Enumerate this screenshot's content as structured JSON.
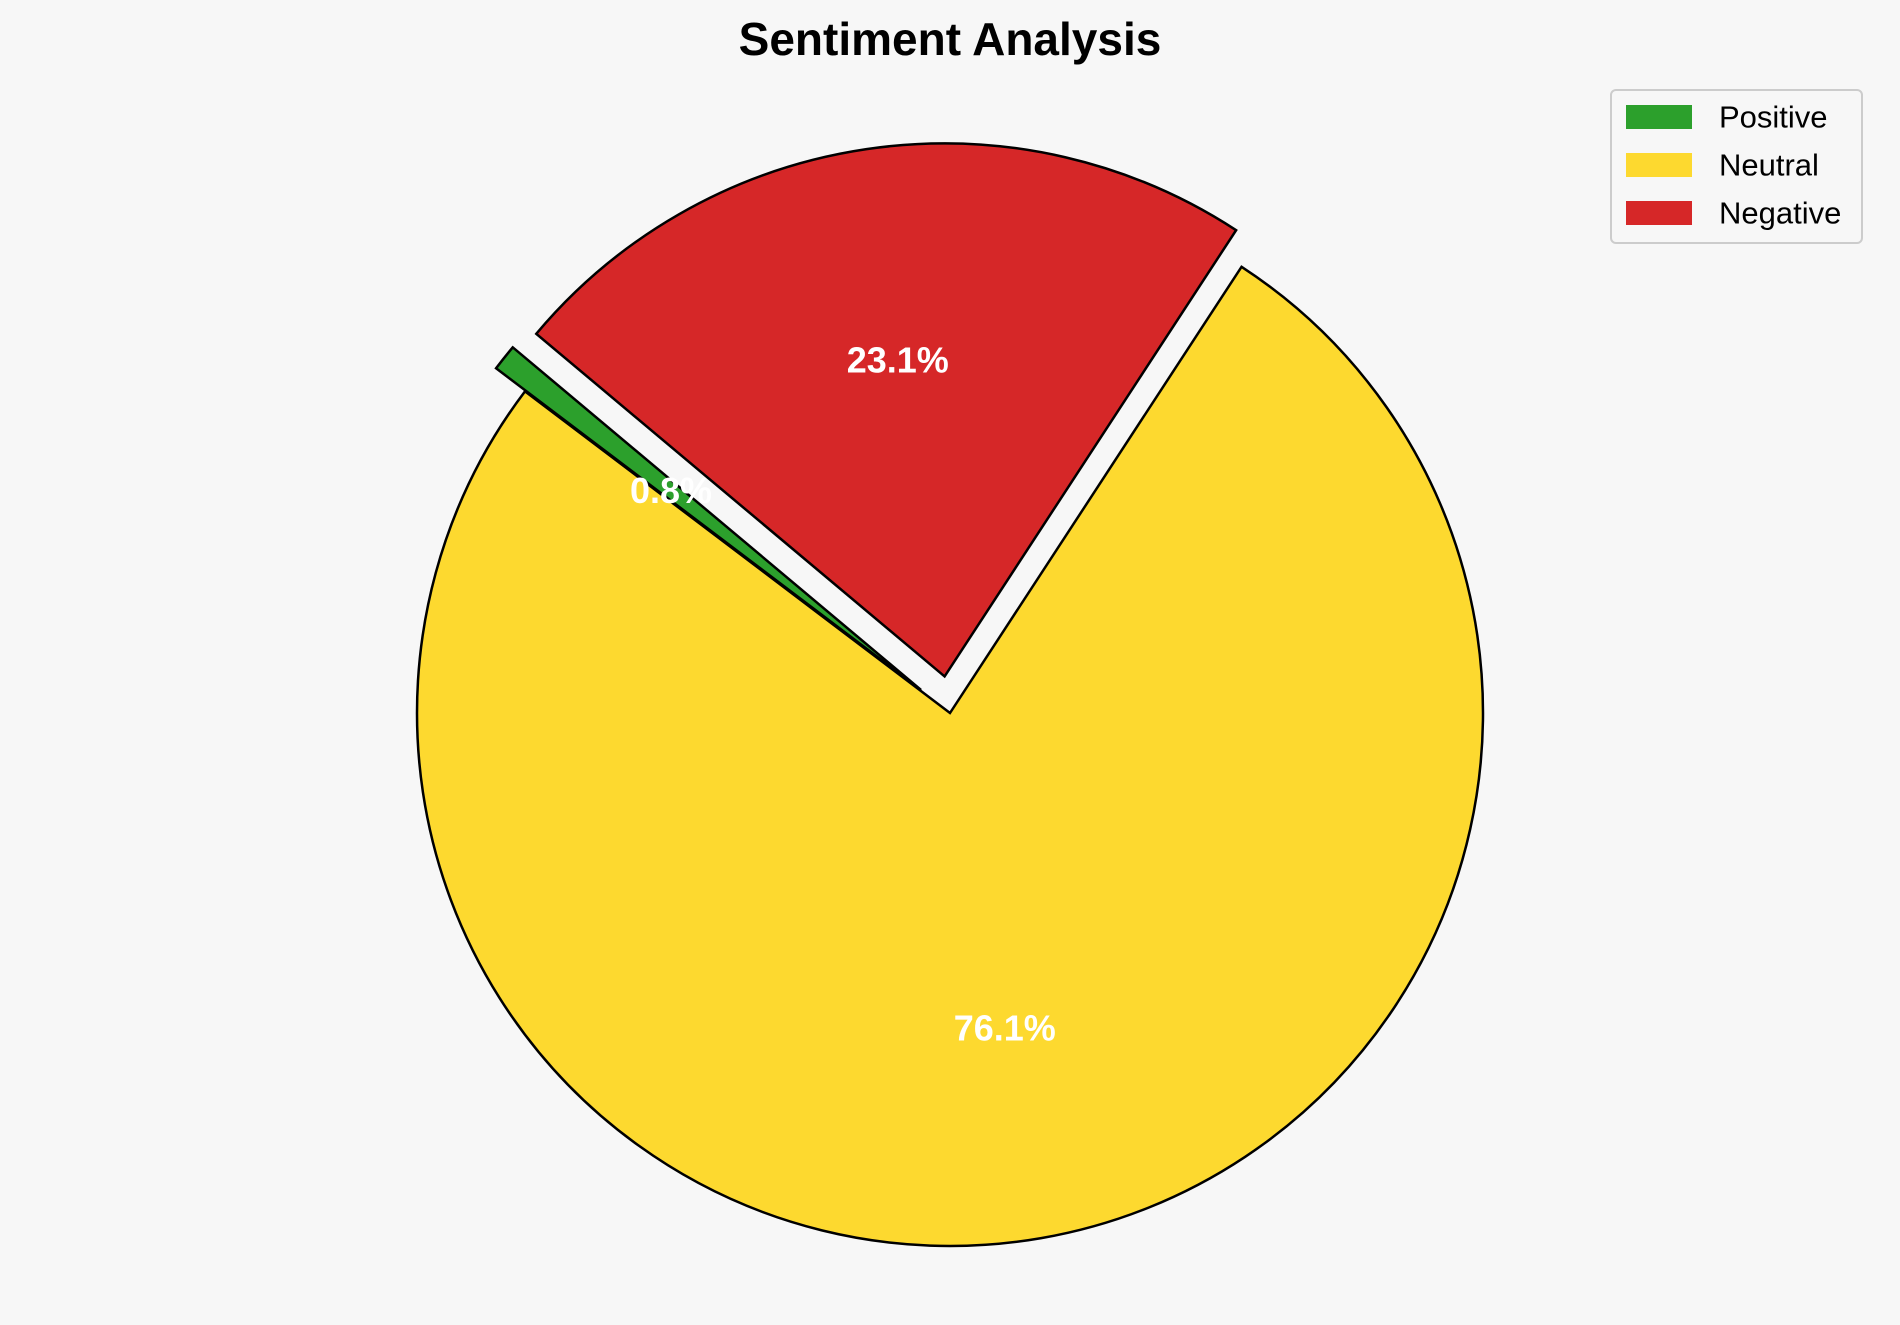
{
  "chart_data": {
    "type": "pie",
    "title": "Sentiment Analysis",
    "slices": [
      {
        "label": "Positive",
        "value": 0.8,
        "pct_label": "0.8%",
        "color": "#2ca02c",
        "exploded": true
      },
      {
        "label": "Neutral",
        "value": 76.1,
        "pct_label": "76.1%",
        "color": "#fdd92f",
        "exploded": false
      },
      {
        "label": "Negative",
        "value": 23.1,
        "pct_label": "23.1%",
        "color": "#d62728",
        "exploded": true
      }
    ],
    "start_angle_deg": 140,
    "direction": "counterclockwise",
    "legend_position": "top-right",
    "edge_color": "#000000",
    "label_color": "#ffffff"
  }
}
